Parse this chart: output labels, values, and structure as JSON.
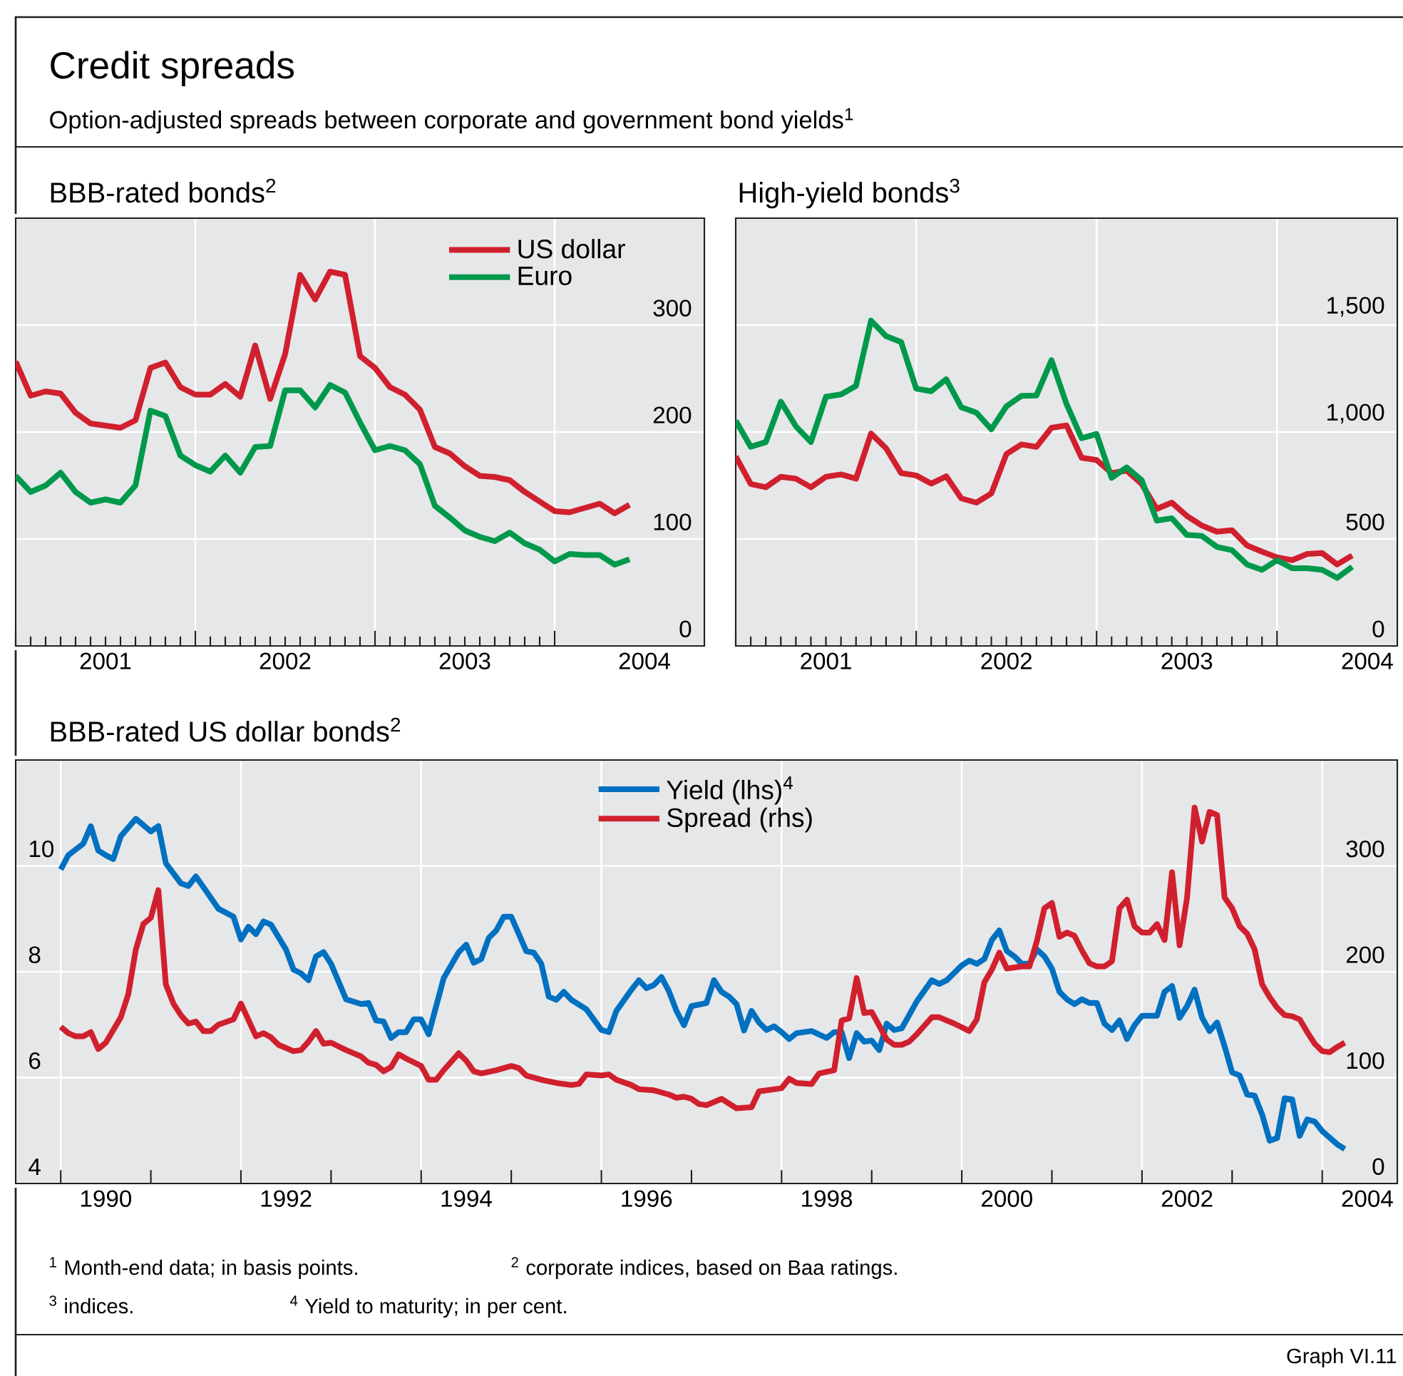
{
  "chart_data": [
    {
      "type": "line",
      "title": "BBB-rated bonds$^{2}$",
      "annotations": [
        "Credit spreads",
        "Option-adjusted spreads between corporate and government bond yields$^{1}$"
      ],
      "x": [
        "2001-01",
        "2001-02",
        "2001-03",
        "2001-04",
        "2001-05",
        "2001-06",
        "2001-07",
        "2001-08",
        "2001-09",
        "2001-10",
        "2001-11",
        "2001-12",
        "2002-01",
        "2002-02",
        "2002-03",
        "2002-04",
        "2002-05",
        "2002-06",
        "2002-07",
        "2002-08",
        "2002-09",
        "2002-10",
        "2002-11",
        "2002-12",
        "2003-01",
        "2003-02",
        "2003-03",
        "2003-04",
        "2003-05",
        "2003-06",
        "2003-07",
        "2003-08",
        "2003-09",
        "2003-10",
        "2003-11",
        "2003-12",
        "2004-01",
        "2004-02",
        "2004-03",
        "2004-04",
        "2004-05",
        "2004-06"
      ],
      "xlim": [
        "2001-01",
        "2004-11"
      ],
      "xticks": [
        {
          "value": "2001-01",
          "label": null
        },
        {
          "value": "2001-07",
          "label": "2001"
        },
        {
          "value": "2002-01",
          "label": null
        },
        {
          "value": "2002-07",
          "label": "2002"
        },
        {
          "value": "2003-01",
          "label": null
        },
        {
          "value": "2003-07",
          "label": "2003"
        },
        {
          "value": "2004-01",
          "label": null
        },
        {
          "value": "2004-07",
          "label": "2004"
        }
      ],
      "ylim": [
        0,
        400
      ],
      "yticks": [
        0,
        100,
        200,
        300
      ],
      "grid": true,
      "legend": "top right",
      "series": [
        {
          "name": "US dollar",
          "color": "#d0202e",
          "values": [
            266,
            234,
            238,
            236,
            218,
            208,
            206,
            204,
            211,
            260,
            265,
            242,
            235,
            235,
            245,
            233,
            281,
            231,
            273,
            347,
            324,
            350,
            347,
            271,
            260,
            242,
            235,
            221,
            186,
            180,
            168,
            159,
            158,
            155,
            144,
            135,
            126,
            125,
            129,
            133,
            124,
            132
          ]
        },
        {
          "name": "Euro",
          "color": "#00994c",
          "values": [
            159,
            144,
            150,
            162,
            144,
            134,
            137,
            134,
            150,
            220,
            215,
            178,
            169,
            163,
            178,
            162,
            186,
            187,
            239,
            239,
            223,
            244,
            237,
            209,
            183,
            187,
            183,
            170,
            131,
            120,
            108,
            102,
            98,
            106,
            96,
            90,
            79,
            86,
            85,
            85,
            76,
            81
          ]
        }
      ]
    },
    {
      "type": "line",
      "title": "High-yield bonds$^{3}$",
      "x": [
        "2001-01",
        "2001-02",
        "2001-03",
        "2001-04",
        "2001-05",
        "2001-06",
        "2001-07",
        "2001-08",
        "2001-09",
        "2001-10",
        "2001-11",
        "2001-12",
        "2002-01",
        "2002-02",
        "2002-03",
        "2002-04",
        "2002-05",
        "2002-06",
        "2002-07",
        "2002-08",
        "2002-09",
        "2002-10",
        "2002-11",
        "2002-12",
        "2003-01",
        "2003-02",
        "2003-03",
        "2003-04",
        "2003-05",
        "2003-06",
        "2003-07",
        "2003-08",
        "2003-09",
        "2003-10",
        "2003-11",
        "2003-12",
        "2004-01",
        "2004-02",
        "2004-03",
        "2004-04",
        "2004-05",
        "2004-06"
      ],
      "xlim": [
        "2001-01",
        "2004-09"
      ],
      "xticks": [
        {
          "value": "2001-01",
          "label": null
        },
        {
          "value": "2001-07",
          "label": "2001"
        },
        {
          "value": "2002-01",
          "label": null
        },
        {
          "value": "2002-07",
          "label": "2002"
        },
        {
          "value": "2003-01",
          "label": null
        },
        {
          "value": "2003-07",
          "label": "2003"
        },
        {
          "value": "2004-01",
          "label": null
        },
        {
          "value": "2004-07",
          "label": "2004"
        }
      ],
      "ylim": [
        0,
        2000
      ],
      "yticks": [
        0,
        500,
        {
          "value": 1000,
          "label": "1,000"
        },
        {
          "value": 1500,
          "label": "1,500"
        }
      ],
      "grid": true,
      "series": [
        {
          "color": "#d0202e",
          "values": [
            886,
            757,
            742,
            791,
            782,
            742,
            791,
            802,
            782,
            993,
            924,
            808,
            797,
            759,
            793,
            690,
            670,
            713,
            897,
            942,
            931,
            1020,
            1031,
            880,
            869,
            808,
            820,
            757,
            641,
            670,
            608,
            563,
            534,
            541,
            470,
            441,
            414,
            401,
            430,
            434,
            381,
            423
          ]
        },
        {
          "color": "#00994c",
          "values": [
            1053,
            931,
            953,
            1142,
            1027,
            953,
            1165,
            1176,
            1216,
            1521,
            1448,
            1421,
            1203,
            1191,
            1247,
            1116,
            1091,
            1013,
            1120,
            1169,
            1171,
            1336,
            1131,
            971,
            991,
            786,
            835,
            775,
            586,
            597,
            519,
            514,
            463,
            448,
            381,
            356,
            401,
            363,
            363,
            356,
            318,
            370
          ]
        }
      ]
    },
    {
      "type": "line",
      "title": "BBB-rated US dollar bonds$^{2}$",
      "annotations": [
        "$^{1}$ Month-end data; in basis points.",
        "$^{2}$ corporate indices, based on Baa ratings.",
        "$^{3}$ indices.",
        "$^{4}$ Yield to maturity; in per cent.",
        "Graph VI.11"
      ],
      "xlim": [
        "1989-07",
        "2004-11"
      ],
      "xticks": [
        {
          "value": "1990-01",
          "label": null
        },
        {
          "value": "1990-07",
          "label": "1990"
        },
        {
          "value": "1992-01",
          "label": null
        },
        {
          "value": "1992-07",
          "label": "1992"
        },
        {
          "value": "1994-01",
          "label": null
        },
        {
          "value": "1994-07",
          "label": "1994"
        },
        {
          "value": "1996-01",
          "label": null
        },
        {
          "value": "1996-07",
          "label": "1996"
        },
        {
          "value": "1998-01",
          "label": null
        },
        {
          "value": "1998-07",
          "label": "1998"
        },
        {
          "value": "2000-01",
          "label": null
        },
        {
          "value": "2000-07",
          "label": "2000"
        },
        {
          "value": "2002-01",
          "label": null
        },
        {
          "value": "2002-07",
          "label": "2002"
        },
        {
          "value": "2004-01",
          "label": null
        },
        {
          "value": "2004-07",
          "label": "2004"
        }
      ],
      "ylim": [
        4,
        12
      ],
      "yticks": [
        4,
        6,
        8,
        10
      ],
      "y2lim": [
        0,
        400
      ],
      "y2ticks": [
        0,
        100,
        200,
        300
      ],
      "grid": true,
      "legend": "top",
      "series": [
        {
          "name": "Yield (lhs)$^{4}$",
          "color": "#0070c0",
          "x": [
            "1990-01",
            "1990-02",
            "1990-03",
            "1990-04",
            "1990-05",
            "1990-06",
            "1990-07",
            "1990-08",
            "1990-09",
            "1990-11",
            "1991-01",
            "1991-02",
            "1991-03",
            "1991-05",
            "1991-06",
            "1991-07",
            "1991-08",
            "1991-10",
            "1991-12",
            "1992-01",
            "1992-02",
            "1992-03",
            "1992-04",
            "1992-05",
            "1992-07",
            "1992-08",
            "1992-09",
            "1992-10",
            "1992-11",
            "1992-12",
            "1993-01",
            "1993-03",
            "1993-05",
            "1993-06",
            "1993-07",
            "1993-08",
            "1993-09",
            "1993-10",
            "1993-11",
            "1993-12",
            "1994-01",
            "1994-02",
            "1994-04",
            "1994-06",
            "1994-07",
            "1994-08",
            "1994-09",
            "1994-10",
            "1994-11",
            "1994-12",
            "1995-01",
            "1995-03",
            "1995-04",
            "1995-05",
            "1995-06",
            "1995-07",
            "1995-08",
            "1995-09",
            "1995-11",
            "1996-01",
            "1996-02",
            "1996-03",
            "1996-05",
            "1996-06",
            "1996-07",
            "1996-08",
            "1996-09",
            "1996-10",
            "1996-11",
            "1996-12",
            "1997-01",
            "1997-02",
            "1997-03",
            "1997-04",
            "1997-05",
            "1997-06",
            "1997-07",
            "1997-08",
            "1997-09",
            "1997-10",
            "1997-11",
            "1997-12",
            "1998-01",
            "1998-02",
            "1998-03",
            "1998-05",
            "1998-07",
            "1998-08",
            "1998-09",
            "1998-10",
            "1998-11",
            "1998-12",
            "1999-01",
            "1999-02",
            "1999-03",
            "1999-04",
            "1999-05",
            "1999-07",
            "1999-09",
            "1999-10",
            "1999-11",
            "2000-01",
            "2000-02",
            "2000-03",
            "2000-04",
            "2000-05",
            "2000-06",
            "2000-07",
            "2000-08",
            "2000-09",
            "2000-10",
            "2000-11",
            "2000-12",
            "2001-01",
            "2001-02",
            "2001-03",
            "2001-04",
            "2001-05",
            "2001-06",
            "2001-07",
            "2001-08",
            "2001-09",
            "2001-10",
            "2001-11",
            "2001-12",
            "2002-01",
            "2002-03",
            "2002-04",
            "2002-05",
            "2002-06",
            "2002-07",
            "2002-08",
            "2002-09",
            "2002-10",
            "2002-11",
            "2002-12",
            "2003-01",
            "2003-02",
            "2003-03",
            "2003-04",
            "2003-05",
            "2003-06",
            "2003-07",
            "2003-08",
            "2003-09",
            "2003-10",
            "2003-11",
            "2003-12",
            "2004-01",
            "2004-03",
            "2004-04"
          ],
          "values": [
            9.93,
            10.2,
            10.31,
            10.42,
            10.75,
            10.29,
            10.2,
            10.13,
            10.56,
            10.89,
            10.65,
            10.75,
            10.05,
            9.67,
            9.62,
            9.8,
            9.6,
            9.19,
            9.04,
            8.61,
            8.85,
            8.71,
            8.95,
            8.89,
            8.42,
            8.04,
            7.97,
            7.84,
            8.29,
            8.37,
            8.15,
            7.48,
            7.39,
            7.41,
            7.08,
            7.06,
            6.75,
            6.86,
            6.86,
            7.1,
            7.1,
            6.82,
            7.88,
            8.37,
            8.51,
            8.17,
            8.24,
            8.64,
            8.78,
            9.04,
            9.04,
            8.39,
            8.36,
            8.15,
            7.53,
            7.47,
            7.62,
            7.47,
            7.29,
            6.9,
            6.86,
            7.26,
            7.66,
            7.84,
            7.69,
            7.75,
            7.9,
            7.63,
            7.26,
            6.99,
            7.35,
            7.38,
            7.41,
            7.84,
            7.62,
            7.53,
            7.39,
            6.89,
            7.26,
            7.04,
            6.9,
            6.97,
            6.86,
            6.73,
            6.84,
            6.88,
            6.75,
            6.86,
            6.86,
            6.37,
            6.84,
            6.68,
            6.7,
            6.52,
            7.02,
            6.9,
            6.93,
            7.44,
            7.84,
            7.77,
            7.84,
            8.12,
            8.21,
            8.15,
            8.24,
            8.6,
            8.78,
            8.39,
            8.29,
            8.15,
            8.15,
            8.42,
            8.29,
            8.06,
            7.62,
            7.48,
            7.39,
            7.48,
            7.41,
            7.41,
            7.02,
            6.9,
            7.08,
            6.73,
            6.99,
            7.17,
            7.17,
            7.62,
            7.73,
            7.13,
            7.35,
            7.66,
            7.13,
            6.88,
            7.04,
            6.59,
            6.1,
            6.04,
            5.68,
            5.66,
            5.3,
            4.81,
            4.86,
            5.61,
            5.59,
            4.9,
            5.21,
            5.17,
            4.99,
            4.74,
            4.65
          ]
        },
        {
          "name": "Spread (rhs)",
          "color": "#d0202e",
          "axis": "y2",
          "x": [
            "1990-01",
            "1990-02",
            "1990-03",
            "1990-04",
            "1990-05",
            "1990-06",
            "1990-07",
            "1990-08",
            "1990-09",
            "1990-10",
            "1990-11",
            "1990-12",
            "1991-01",
            "1991-02",
            "1991-03",
            "1991-04",
            "1991-05",
            "1991-06",
            "1991-07",
            "1991-08",
            "1991-09",
            "1991-10",
            "1991-12",
            "1992-01",
            "1992-03",
            "1992-04",
            "1992-05",
            "1992-06",
            "1992-08",
            "1992-09",
            "1992-10",
            "1992-11",
            "1992-12",
            "1993-01",
            "1993-03",
            "1993-05",
            "1993-06",
            "1993-07",
            "1993-08",
            "1993-09",
            "1993-10",
            "1993-11",
            "1994-01",
            "1994-02",
            "1994-03",
            "1994-04",
            "1994-06",
            "1994-07",
            "1994-08",
            "1994-09",
            "1994-11",
            "1995-01",
            "1995-02",
            "1995-03",
            "1995-05",
            "1995-07",
            "1995-09",
            "1995-10",
            "1995-11",
            "1996-01",
            "1996-02",
            "1996-03",
            "1996-05",
            "1996-06",
            "1996-08",
            "1996-10",
            "1996-11",
            "1996-12",
            "1997-01",
            "1997-02",
            "1997-03",
            "1997-05",
            "1997-07",
            "1997-09",
            "1997-10",
            "1998-01",
            "1998-02",
            "1998-03",
            "1998-05",
            "1998-06",
            "1998-08",
            "1998-09",
            "1998-10",
            "1998-11",
            "1998-12",
            "1999-01",
            "1999-03",
            "1999-04",
            "1999-05",
            "1999-06",
            "1999-07",
            "1999-09",
            "1999-10",
            "1999-12",
            "2000-02",
            "2000-03",
            "2000-04",
            "2000-05",
            "2000-06",
            "2000-07",
            "2000-09",
            "2000-10",
            "2000-11",
            "2000-12",
            "2001-01",
            "2001-02",
            "2001-03",
            "2001-04",
            "2001-05",
            "2001-06",
            "2001-07",
            "2001-08",
            "2001-09",
            "2001-10",
            "2001-11",
            "2001-12",
            "2002-01",
            "2002-02",
            "2002-03",
            "2002-04",
            "2002-05",
            "2002-06",
            "2002-07",
            "2002-08",
            "2002-09",
            "2002-10",
            "2002-11",
            "2002-12",
            "2003-01",
            "2003-02",
            "2003-03",
            "2003-04",
            "2003-05",
            "2003-06",
            "2003-07",
            "2003-08",
            "2003-09",
            "2003-10",
            "2003-11",
            "2003-12",
            "2004-01",
            "2004-02",
            "2004-03",
            "2004-04"
          ],
          "values": [
            148,
            142,
            139,
            139,
            143,
            127,
            133,
            145,
            157,
            179,
            221,
            245,
            251,
            277,
            188,
            170,
            159,
            151,
            153,
            144,
            144,
            150,
            155,
            170,
            139,
            142,
            138,
            131,
            125,
            126,
            134,
            144,
            132,
            133,
            126,
            120,
            114,
            112,
            106,
            110,
            122,
            118,
            111,
            98,
            98,
            107,
            123,
            116,
            106,
            104,
            107,
            111,
            109,
            102,
            98,
            95,
            93,
            94,
            103,
            102,
            103,
            98,
            93,
            89,
            88,
            84,
            81,
            82,
            80,
            75,
            74,
            80,
            71,
            72,
            87,
            90,
            99,
            95,
            94,
            104,
            107,
            154,
            156,
            194,
            161,
            162,
            136,
            131,
            131,
            134,
            141,
            157,
            157,
            151,
            144,
            155,
            190,
            202,
            218,
            203,
            205,
            205,
            229,
            260,
            265,
            233,
            237,
            234,
            220,
            208,
            205,
            205,
            210,
            260,
            268,
            243,
            237,
            237,
            245,
            230,
            294,
            225,
            270,
            355,
            323,
            351,
            348,
            270,
            260,
            243,
            236,
            221,
            188,
            176,
            166,
            159,
            158,
            155,
            143,
            132,
            125,
            124,
            129,
            133
          ]
        }
      ]
    }
  ]
}
